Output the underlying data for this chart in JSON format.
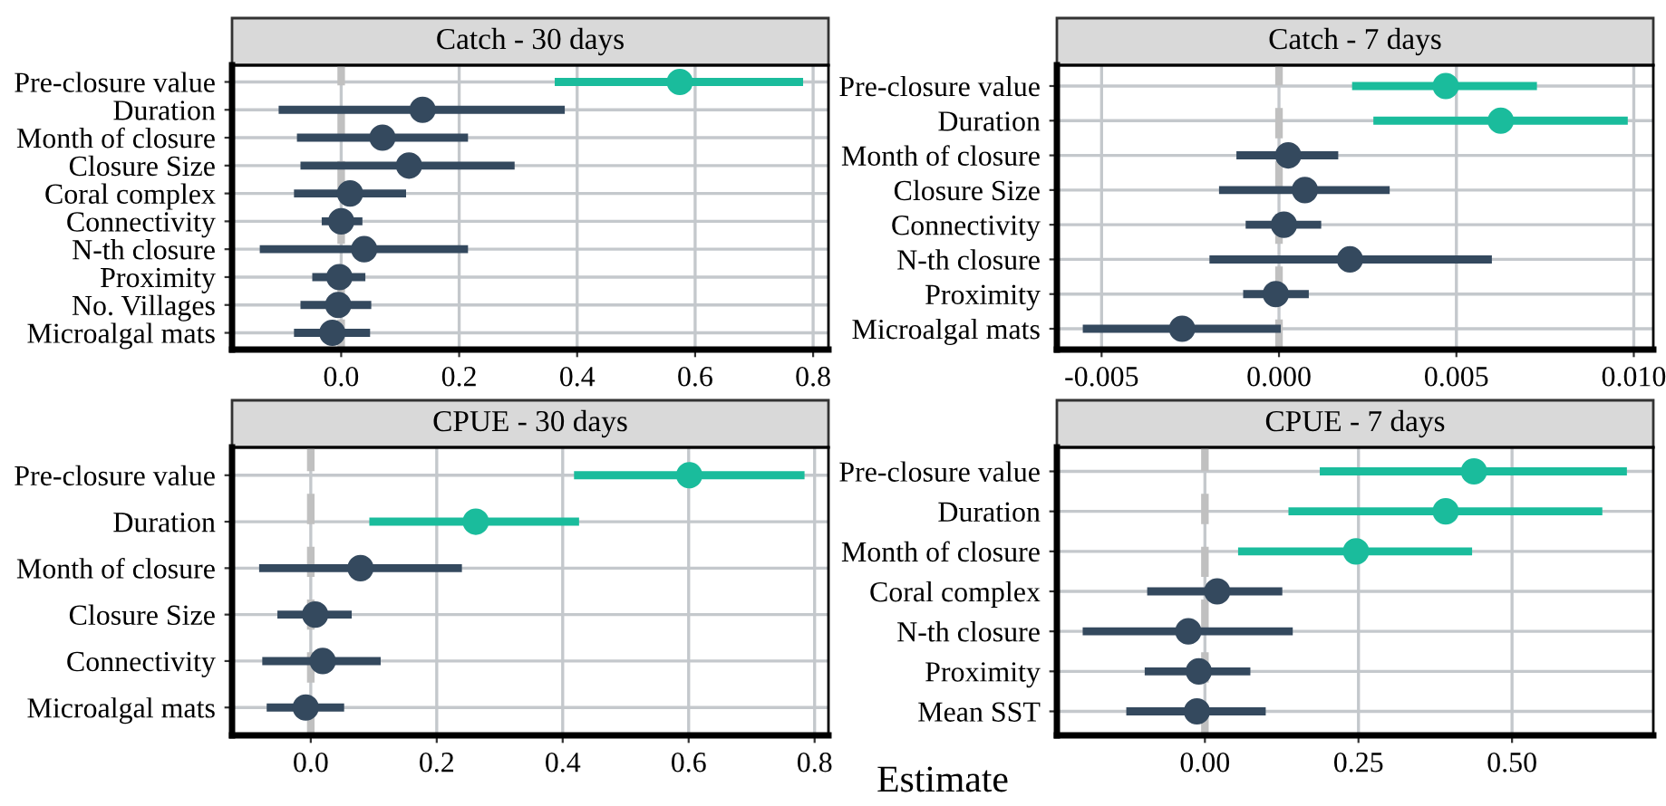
{
  "chart_data": [
    {
      "type": "scatter",
      "orientation": "horizontal",
      "title": "Catch - 30 days",
      "marker": "circle",
      "grid": true,
      "categories": [
        "Pre-closure value",
        "Duration",
        "Month of closure",
        "Closure Size",
        "Coral complex",
        "Connectivity",
        "N-th closure",
        "Proximity",
        "No. Villages",
        "Microalgal mats"
      ],
      "series": [
        {
          "values": [
            0.574,
            0.138,
            0.07,
            0.115,
            0.015,
            0.0,
            0.039,
            -0.003,
            -0.005,
            -0.015
          ],
          "colors": [
            "#1abc9c",
            "#34495e",
            "#34495e",
            "#34495e",
            "#34495e",
            "#34495e",
            "#34495e",
            "#34495e",
            "#34495e",
            "#34495e"
          ],
          "errors": [
            [
              0.362,
              0.783
            ],
            [
              -0.106,
              0.379
            ],
            [
              -0.075,
              0.215
            ],
            [
              -0.069,
              0.294
            ],
            [
              -0.08,
              0.11
            ],
            [
              -0.033,
              0.036
            ],
            [
              -0.138,
              0.215
            ],
            [
              -0.049,
              0.041
            ],
            [
              -0.069,
              0.051
            ],
            [
              -0.08,
              0.049
            ]
          ]
        }
      ],
      "xlim": [
        -0.185,
        0.826
      ],
      "xticks": [
        {
          "value": 0,
          "label": "0.0"
        },
        {
          "value": 0.2,
          "label": "0.2"
        },
        {
          "value": 0.4,
          "label": "0.4"
        },
        {
          "value": 0.6,
          "label": "0.6"
        },
        {
          "value": 0.8,
          "label": "0.8"
        }
      ],
      "ref_lines": [
        {
          "axis": "x",
          "value": 0,
          "color": "#c0c0c0",
          "line_style": "dashed"
        }
      ]
    },
    {
      "type": "scatter",
      "orientation": "horizontal",
      "title": "Catch - 7 days",
      "marker": "circle",
      "grid": true,
      "categories": [
        "Pre-closure value",
        "Duration",
        "Month of closure",
        "Closure Size",
        "Connectivity",
        "N-th closure",
        "Proximity",
        "Microalgal mats"
      ],
      "series": [
        {
          "values": [
            0.0047,
            0.00625,
            0.00026,
            0.00073,
            0.00014,
            0.002,
            -9e-05,
            -0.00273
          ],
          "colors": [
            "#1abc9c",
            "#1abc9c",
            "#34495e",
            "#34495e",
            "#34495e",
            "#34495e",
            "#34495e",
            "#34495e"
          ],
          "errors": [
            [
              0.00206,
              0.00727
            ],
            [
              0.00266,
              0.00983
            ],
            [
              -0.0012,
              0.00167
            ],
            [
              -0.00169,
              0.00312
            ],
            [
              -0.00094,
              0.00119
            ],
            [
              -0.00196,
              0.006
            ],
            [
              -0.00101,
              0.00084
            ],
            [
              -0.00553,
              5e-05
            ]
          ]
        }
      ],
      "xlim": [
        -0.00626,
        0.01055
      ],
      "xticks": [
        {
          "value": -0.005,
          "label": "-0.005"
        },
        {
          "value": 0,
          "label": "0.000"
        },
        {
          "value": 0.005,
          "label": "0.005"
        },
        {
          "value": 0.01,
          "label": "0.010"
        }
      ],
      "ref_lines": [
        {
          "axis": "x",
          "value": 0,
          "color": "#c0c0c0",
          "line_style": "dashed"
        }
      ]
    },
    {
      "type": "scatter",
      "orientation": "horizontal",
      "title": "CPUE - 30 days",
      "marker": "circle",
      "grid": true,
      "categories": [
        "Pre-closure value",
        "Duration",
        "Month of closure",
        "Closure Size",
        "Connectivity",
        "Microalgal mats"
      ],
      "series": [
        {
          "values": [
            0.601,
            0.262,
            0.079,
            0.007,
            0.019,
            -0.008
          ],
          "colors": [
            "#1abc9c",
            "#1abc9c",
            "#34495e",
            "#34495e",
            "#34495e",
            "#34495e"
          ],
          "errors": [
            [
              0.418,
              0.784
            ],
            [
              0.093,
              0.426
            ],
            [
              -0.082,
              0.24
            ],
            [
              -0.053,
              0.065
            ],
            [
              -0.077,
              0.111
            ],
            [
              -0.07,
              0.053
            ]
          ]
        }
      ],
      "xlim": [
        -0.125,
        0.822
      ],
      "xticks": [
        {
          "value": 0,
          "label": "0.0"
        },
        {
          "value": 0.2,
          "label": "0.2"
        },
        {
          "value": 0.4,
          "label": "0.4"
        },
        {
          "value": 0.6,
          "label": "0.6"
        },
        {
          "value": 0.8,
          "label": "0.8"
        }
      ],
      "ref_lines": [
        {
          "axis": "x",
          "value": 0,
          "color": "#c0c0c0",
          "line_style": "dashed"
        }
      ]
    },
    {
      "type": "scatter",
      "orientation": "horizontal",
      "title": "CPUE - 7 days",
      "xlabel": "Estimate",
      "marker": "circle",
      "grid": true,
      "categories": [
        "Pre-closure value",
        "Duration",
        "Month of closure",
        "Coral complex",
        "N-th closure",
        "Proximity",
        "Mean SST"
      ],
      "series": [
        {
          "values": [
            0.438,
            0.392,
            0.246,
            0.02,
            -0.027,
            -0.01,
            -0.013
          ],
          "colors": [
            "#1abc9c",
            "#1abc9c",
            "#1abc9c",
            "#34495e",
            "#34495e",
            "#34495e",
            "#34495e"
          ],
          "errors": [
            [
              0.187,
              0.687
            ],
            [
              0.136,
              0.647
            ],
            [
              0.054,
              0.435
            ],
            [
              -0.094,
              0.126
            ],
            [
              -0.199,
              0.143
            ],
            [
              -0.098,
              0.074
            ],
            [
              -0.128,
              0.099
            ]
          ]
        }
      ],
      "xlim": [
        -0.241,
        0.73
      ],
      "xticks": [
        {
          "value": 0,
          "label": "0.00"
        },
        {
          "value": 0.25,
          "label": "0.25"
        },
        {
          "value": 0.5,
          "label": "0.50"
        }
      ],
      "ref_lines": [
        {
          "axis": "x",
          "value": 0,
          "color": "#c0c0c0",
          "line_style": "dashed"
        }
      ]
    }
  ]
}
